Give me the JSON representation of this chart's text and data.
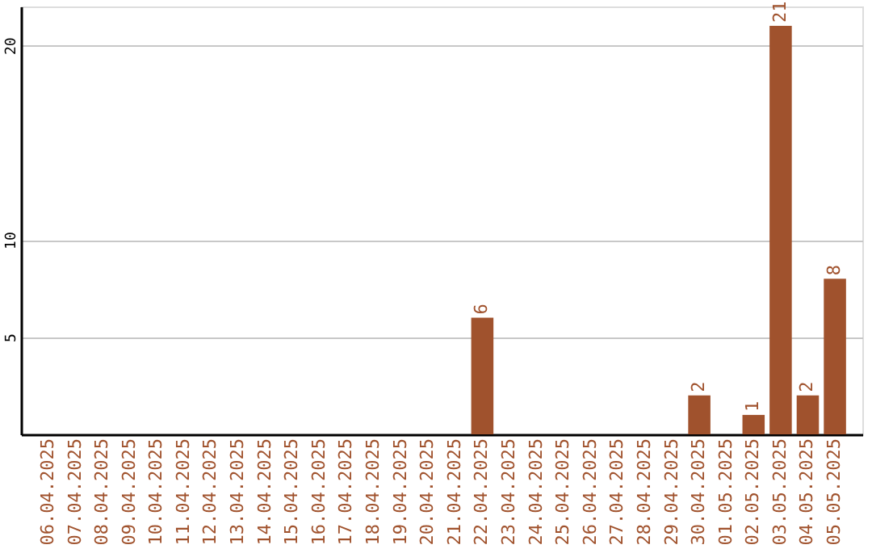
{
  "chart_data": {
    "type": "bar",
    "categories": [
      "06.04.2025",
      "07.04.2025",
      "08.04.2025",
      "09.04.2025",
      "10.04.2025",
      "11.04.2025",
      "12.04.2025",
      "13.04.2025",
      "14.04.2025",
      "15.04.2025",
      "16.04.2025",
      "17.04.2025",
      "18.04.2025",
      "19.04.2025",
      "20.04.2025",
      "21.04.2025",
      "22.04.2025",
      "23.04.2025",
      "24.04.2025",
      "25.04.2025",
      "26.04.2025",
      "27.04.2025",
      "28.04.2025",
      "29.04.2025",
      "30.04.2025",
      "01.05.2025",
      "02.05.2025",
      "03.05.2025",
      "04.05.2025",
      "05.05.2025"
    ],
    "values": [
      0,
      0,
      0,
      0,
      0,
      0,
      0,
      0,
      0,
      0,
      0,
      0,
      0,
      0,
      0,
      0,
      6,
      0,
      0,
      0,
      0,
      0,
      0,
      0,
      2,
      0,
      1,
      21,
      2,
      8
    ],
    "value_labels": [
      null,
      null,
      null,
      null,
      null,
      null,
      null,
      null,
      null,
      null,
      null,
      null,
      null,
      null,
      null,
      null,
      "6",
      null,
      null,
      null,
      null,
      null,
      null,
      null,
      "2",
      null,
      "1",
      "21",
      "2",
      "8"
    ],
    "color": "#a0522d",
    "ylim": [
      0,
      22
    ],
    "yticks": [
      5,
      10,
      20
    ],
    "grid": "y"
  }
}
